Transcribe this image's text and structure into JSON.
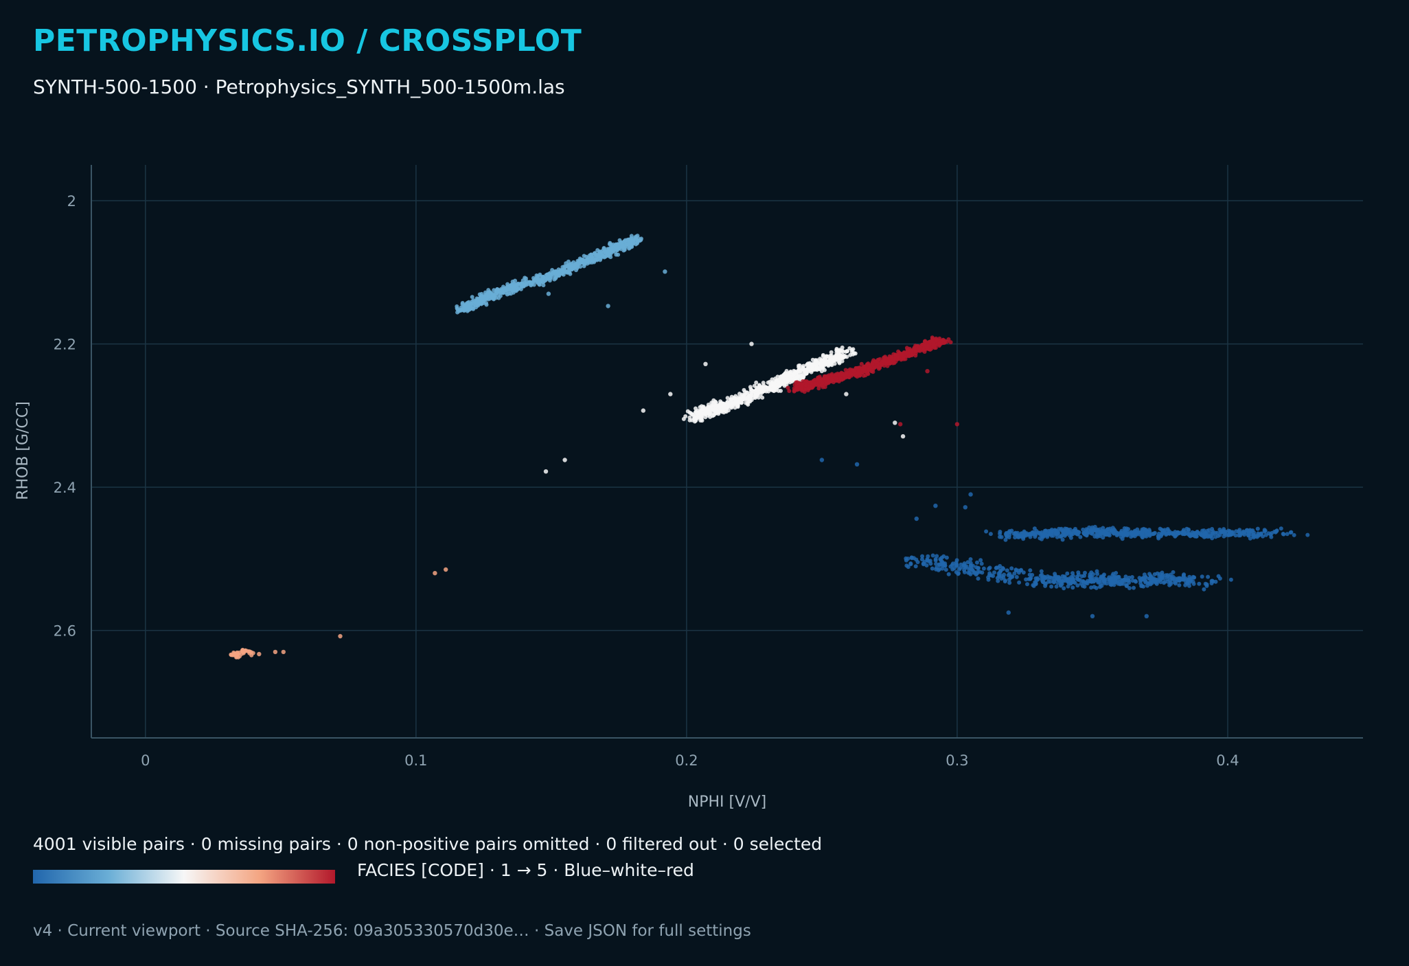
{
  "header": {
    "title": "PETROPHYSICS.IO / CROSSPLOT",
    "subtitle": "SYNTH-500-1500 · Petrophysics_SYNTH_500-1500m.las"
  },
  "status": {
    "stats_text": "4001 visible pairs · 0 missing pairs · 0 non-positive pairs omitted · 0 filtered out · 0 selected",
    "legend_text": "FACIES [CODE] · 1 → 5 · Blue–white–red",
    "footer_text": "v4 · Current viewport · Source SHA-256: 09a305330570d30e… · Save JSON for full settings"
  },
  "colors": {
    "background": "#06131d",
    "title": "#17c6e2",
    "grid": "#1b3444",
    "axis": "#3a5565",
    "tick_text": "#8fa3b1",
    "colormap": [
      "#2166ac",
      "#6aaed6",
      "#f7f7f7",
      "#f4a582",
      "#b2182b"
    ]
  },
  "chart_data": {
    "type": "scatter",
    "xlabel": "NPHI [V/V]",
    "ylabel": "RHOB [G/CC]",
    "xlim": [
      -0.02,
      0.45
    ],
    "ylim": [
      1.95,
      2.75
    ],
    "y_inverted": true,
    "xticks": [
      "0",
      "0.1",
      "0.2",
      "0.3",
      "0.4"
    ],
    "yticks": [
      "2",
      "2.2",
      "2.4",
      "2.6"
    ],
    "xtick_values": [
      0,
      0.1,
      0.2,
      0.3,
      0.4
    ],
    "ytick_values": [
      2.0,
      2.2,
      2.4,
      2.6
    ],
    "grid": true,
    "color_by": "FACIES",
    "color_range": [
      1,
      5
    ],
    "visible_pairs": 4001,
    "series": [
      {
        "facies": 1,
        "color": "#2166ac",
        "trend": [
          [
            0.32,
            2.468
          ],
          [
            0.345,
            2.462
          ],
          [
            0.375,
            2.465
          ],
          [
            0.415,
            2.464
          ]
        ],
        "trend2": [
          [
            0.285,
            2.5
          ],
          [
            0.33,
            2.53
          ],
          [
            0.36,
            2.53
          ],
          [
            0.39,
            2.53
          ]
        ],
        "outliers": [
          [
            0.25,
            2.362
          ],
          [
            0.263,
            2.368
          ],
          [
            0.292,
            2.426
          ],
          [
            0.303,
            2.428
          ],
          [
            0.305,
            2.41
          ],
          [
            0.319,
            2.575
          ],
          [
            0.35,
            2.58
          ],
          [
            0.37,
            2.58
          ],
          [
            0.285,
            2.444
          ]
        ]
      },
      {
        "facies": 2,
        "color": "#6aaed6",
        "trend": [
          [
            0.117,
            2.152
          ],
          [
            0.13,
            2.128
          ],
          [
            0.15,
            2.105
          ],
          [
            0.167,
            2.078
          ],
          [
            0.182,
            2.053
          ]
        ],
        "outliers": [
          [
            0.192,
            2.099
          ],
          [
            0.171,
            2.147
          ],
          [
            0.149,
            2.13
          ]
        ]
      },
      {
        "facies": 3,
        "color": "#f7f7f7",
        "trend": [
          [
            0.202,
            2.302
          ],
          [
            0.215,
            2.285
          ],
          [
            0.232,
            2.258
          ],
          [
            0.245,
            2.236
          ],
          [
            0.26,
            2.211
          ]
        ],
        "outliers": [
          [
            0.224,
            2.2
          ],
          [
            0.207,
            2.228
          ],
          [
            0.194,
            2.27
          ],
          [
            0.184,
            2.293
          ],
          [
            0.259,
            2.27
          ],
          [
            0.155,
            2.362
          ],
          [
            0.148,
            2.378
          ],
          [
            0.277,
            2.31
          ],
          [
            0.28,
            2.329
          ]
        ]
      },
      {
        "facies": 4,
        "color": "#f4a582",
        "trend": [
          [
            0.031,
            2.632
          ],
          [
            0.034,
            2.636
          ],
          [
            0.036,
            2.628
          ],
          [
            0.039,
            2.632
          ]
        ],
        "outliers": [
          [
            0.042,
            2.633
          ],
          [
            0.048,
            2.63
          ],
          [
            0.051,
            2.63
          ],
          [
            0.072,
            2.608
          ],
          [
            0.107,
            2.52
          ],
          [
            0.111,
            2.515
          ]
        ]
      },
      {
        "facies": 5,
        "color": "#b2182b",
        "trend": [
          [
            0.24,
            2.262
          ],
          [
            0.255,
            2.248
          ],
          [
            0.27,
            2.23
          ],
          [
            0.285,
            2.208
          ],
          [
            0.295,
            2.195
          ]
        ],
        "outliers": [
          [
            0.279,
            2.312
          ],
          [
            0.3,
            2.312
          ],
          [
            0.289,
            2.238
          ]
        ]
      }
    ]
  }
}
